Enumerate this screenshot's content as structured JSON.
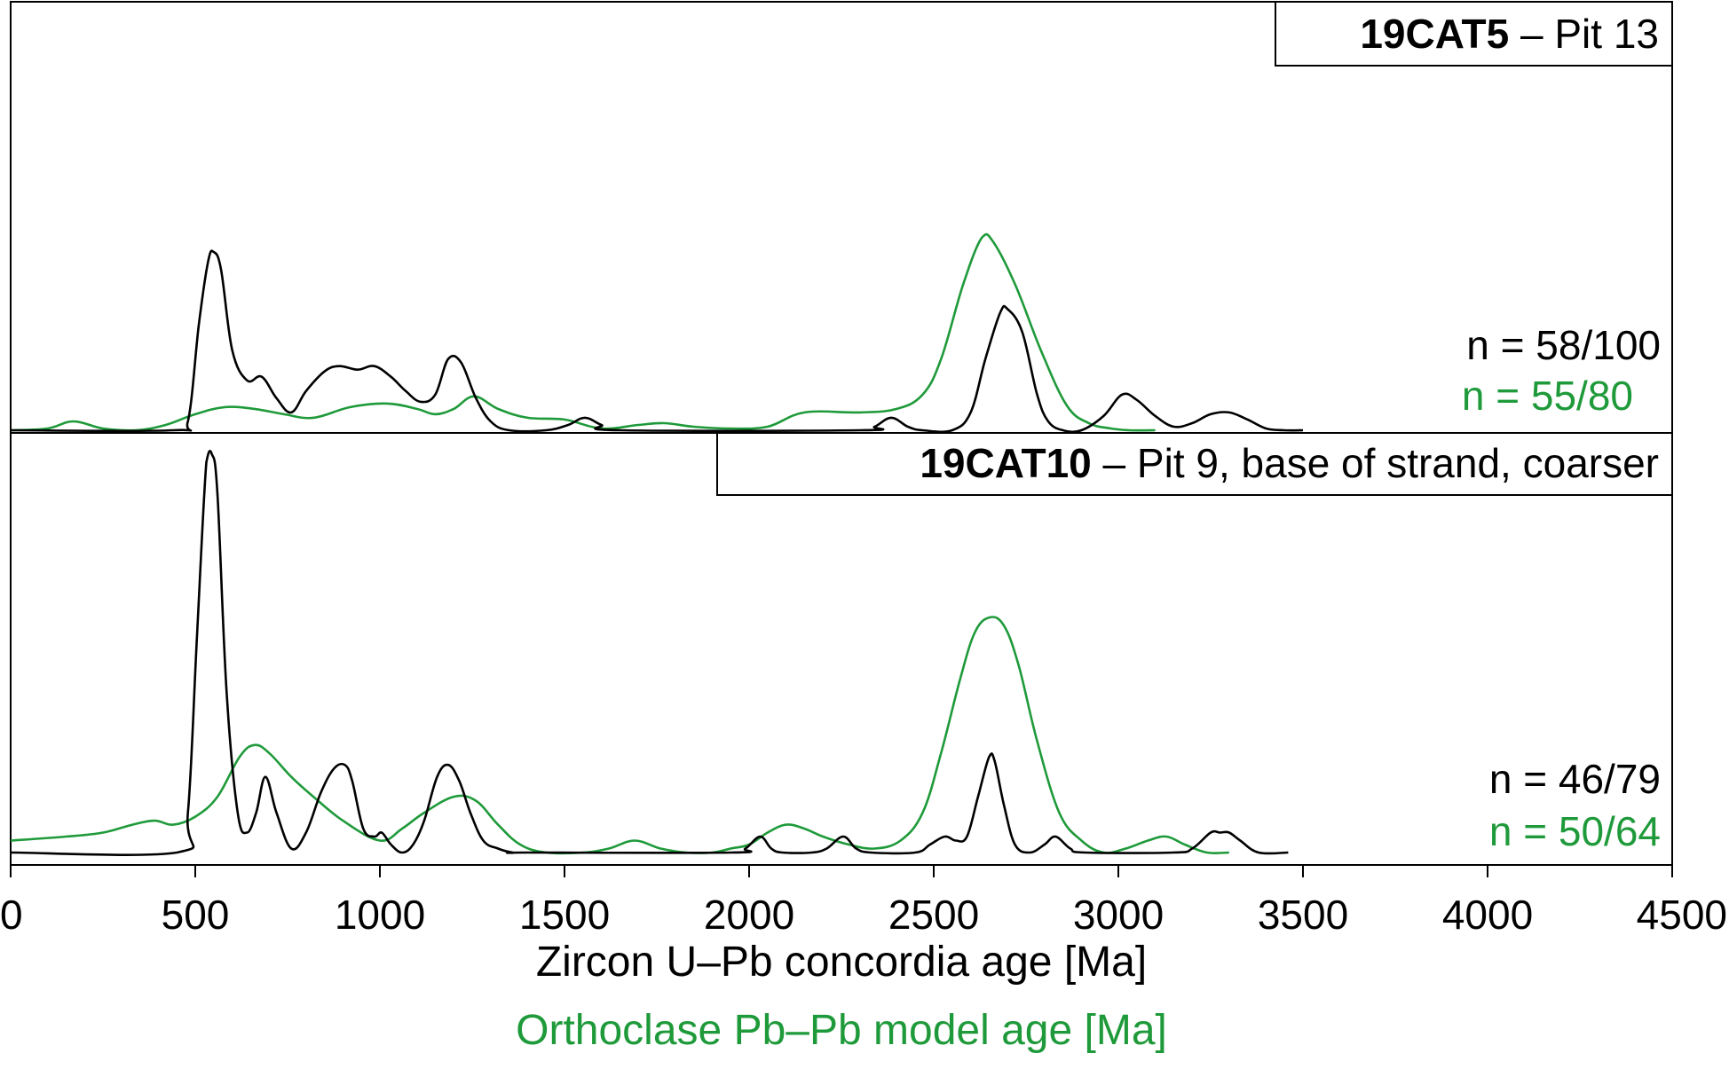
{
  "colors": {
    "zircon": "#000000",
    "orthoclase": "#1f9a3a",
    "frame": "#000000",
    "background": "#ffffff"
  },
  "axis": {
    "xlabel_primary": "Zircon U–Pb concordia age [Ma]",
    "xlabel_secondary": "Orthoclase Pb–Pb model age [Ma]",
    "ticks": [
      "0",
      "500",
      "1000",
      "1500",
      "2000",
      "2500",
      "3000",
      "3500",
      "4000",
      "4500"
    ]
  },
  "panels": [
    {
      "title_bold": "19CAT5",
      "title_rest": " – Pit 13",
      "n_zircon": "n = 58/100",
      "n_orthoclase": "n = 55/80"
    },
    {
      "title_bold": "19CAT10",
      "title_rest": " – Pit 9, base of strand, coarser",
      "n_zircon": "n = 46/79",
      "n_orthoclase": "n = 50/64"
    }
  ],
  "chart_data": [
    {
      "type": "line",
      "title": "19CAT5 – Pit 13",
      "xlabel": "Zircon U–Pb concordia age [Ma]",
      "xlim": [
        0,
        4500
      ],
      "grid": false,
      "series": [
        {
          "name": "n = 58/100",
          "color": "#000000",
          "x": [
            0,
            440,
            480,
            510,
            535,
            550,
            570,
            600,
            640,
            680,
            720,
            760,
            800,
            850,
            890,
            940,
            985,
            1030,
            1070,
            1110,
            1150,
            1185,
            1220,
            1260,
            1300,
            1350,
            1450,
            1510,
            1555,
            1600,
            1650,
            2300,
            2340,
            2385,
            2430,
            2470,
            2550,
            2600,
            2640,
            2680,
            2700,
            2740,
            2780,
            2810,
            2850,
            2900,
            2960,
            3010,
            3050,
            3100,
            3150,
            3200,
            3250,
            3300,
            3350,
            3400,
            3450,
            3500
          ],
          "y": [
            0,
            0,
            5,
            60,
            95,
            100,
            90,
            45,
            28,
            30,
            18,
            10,
            22,
            33,
            36,
            34,
            36,
            30,
            22,
            16,
            20,
            40,
            38,
            18,
            5,
            0,
            0,
            3,
            7,
            3,
            0,
            0,
            2,
            7,
            2,
            0,
            0,
            10,
            40,
            66,
            68,
            55,
            20,
            5,
            0,
            0,
            8,
            20,
            17,
            8,
            2,
            4,
            9,
            10,
            6,
            1,
            0,
            0
          ],
          "peak_max": 100
        },
        {
          "name": "n = 55/80",
          "color": "#1f9a3a",
          "x": [
            0,
            100,
            170,
            250,
            340,
            420,
            500,
            580,
            660,
            740,
            820,
            920,
            1020,
            1100,
            1150,
            1200,
            1255,
            1320,
            1400,
            1500,
            1600,
            1700,
            1770,
            1850,
            1950,
            2050,
            2150,
            2300,
            2400,
            2470,
            2520,
            2580,
            2630,
            2660,
            2720,
            2790,
            2860,
            2920,
            2980,
            3030,
            3100
          ],
          "y": [
            0,
            1,
            5,
            1,
            0,
            3,
            9,
            13,
            12,
            9,
            7,
            13,
            15,
            12,
            9,
            12,
            19,
            12,
            7,
            6,
            1,
            3,
            4,
            2,
            1,
            2,
            10,
            10,
            12,
            20,
            40,
            82,
            108,
            106,
            82,
            45,
            14,
            4,
            1,
            0,
            0
          ],
          "peak_max": 108
        }
      ]
    },
    {
      "type": "line",
      "title": "19CAT10 – Pit 9, base of strand, coarser",
      "xlabel": "Zircon U–Pb concordia age [Ma]",
      "xlim": [
        0,
        4500
      ],
      "grid": false,
      "series": [
        {
          "name": "n = 46/79",
          "color": "#000000",
          "x": [
            0,
            450,
            480,
            505,
            530,
            545,
            560,
            585,
            615,
            640,
            665,
            690,
            720,
            760,
            800,
            840,
            875,
            905,
            925,
            955,
            985,
            1005,
            1030,
            1060,
            1090,
            1120,
            1155,
            1185,
            1215,
            1245,
            1280,
            1320,
            1360,
            1400,
            1950,
            1990,
            2030,
            2060,
            2090,
            2170,
            2210,
            2255,
            2290,
            2330,
            2450,
            2490,
            2530,
            2560,
            2590,
            2620,
            2650,
            2665,
            2690,
            2720,
            2760,
            2800,
            2830,
            2870,
            2910,
            3150,
            3200,
            3250,
            3275,
            3300,
            3330,
            3380,
            3460
          ],
          "y": [
            0,
            0,
            10,
            55,
            98,
            100,
            90,
            40,
            10,
            5,
            10,
            19,
            10,
            1,
            5,
            15,
            21,
            22,
            18,
            6,
            4,
            5,
            2,
            0,
            2,
            8,
            19,
            22,
            18,
            10,
            3,
            1,
            0,
            0,
            0,
            1,
            4,
            1,
            0,
            0,
            1,
            4,
            1,
            0,
            0,
            2,
            4,
            3,
            4,
            14,
            24,
            23,
            12,
            2,
            0,
            2,
            4,
            1,
            0,
            0,
            1,
            5,
            5,
            5,
            3,
            0,
            0
          ],
          "peak_max": 100
        },
        {
          "name": "n = 50/64",
          "color": "#1f9a3a",
          "x": [
            0,
            150,
            250,
            330,
            390,
            440,
            500,
            560,
            620,
            660,
            700,
            760,
            820,
            900,
            1000,
            1060,
            1120,
            1200,
            1260,
            1320,
            1380,
            1450,
            1550,
            1620,
            1690,
            1760,
            1830,
            1900,
            1950,
            2000,
            2050,
            2100,
            2150,
            2200,
            2270,
            2340,
            2410,
            2470,
            2520,
            2570,
            2610,
            2650,
            2690,
            2730,
            2780,
            2840,
            2900,
            2960,
            3020,
            3080,
            3130,
            3180,
            3240,
            3300
          ],
          "y": [
            3,
            4,
            5,
            7,
            8,
            7,
            9,
            14,
            24,
            27,
            25,
            19,
            14,
            8,
            3,
            6,
            10,
            14,
            13,
            7,
            2,
            0,
            0,
            1,
            3,
            1,
            0,
            0,
            1,
            2,
            5,
            7,
            6,
            4,
            2,
            1,
            3,
            10,
            25,
            43,
            55,
            59,
            57,
            47,
            28,
            10,
            3,
            0,
            1,
            3,
            4,
            2,
            0,
            0
          ],
          "peak_max": 59
        }
      ]
    }
  ]
}
